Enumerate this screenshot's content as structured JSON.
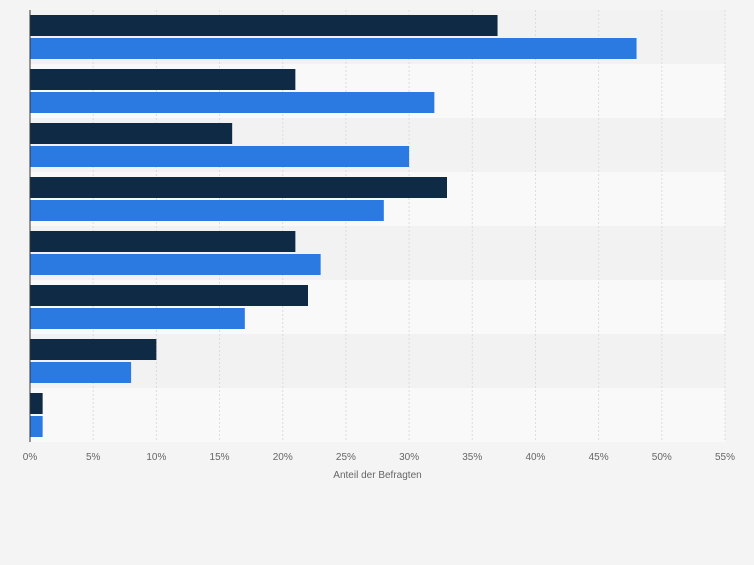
{
  "chart_data": {
    "type": "bar",
    "orientation": "horizontal",
    "categories": [
      "",
      "",
      "",
      "",
      "",
      "",
      "",
      ""
    ],
    "series": [
      {
        "color": "#0f2a44",
        "values": [
          37,
          21,
          16,
          33,
          21,
          22,
          10,
          1
        ]
      },
      {
        "color": "#2a7ae2",
        "values": [
          48,
          32,
          30,
          28,
          23,
          17,
          8,
          1
        ]
      }
    ],
    "xlim": [
      0,
      55
    ],
    "ticks": [
      {
        "value": 0,
        "label": "0%"
      },
      {
        "value": 5,
        "label": "5%"
      },
      {
        "value": 10,
        "label": "10%"
      },
      {
        "value": 15,
        "label": "15%"
      },
      {
        "value": 20,
        "label": "20%"
      },
      {
        "value": 25,
        "label": "25%"
      },
      {
        "value": 30,
        "label": "30%"
      },
      {
        "value": 35,
        "label": "35%"
      },
      {
        "value": 40,
        "label": "40%"
      },
      {
        "value": 45,
        "label": "45%"
      },
      {
        "value": 50,
        "label": "50%"
      },
      {
        "value": 55,
        "label": "55%"
      }
    ],
    "xlabel": "Anteil der Befragten",
    "grid": true,
    "legend": "none"
  }
}
